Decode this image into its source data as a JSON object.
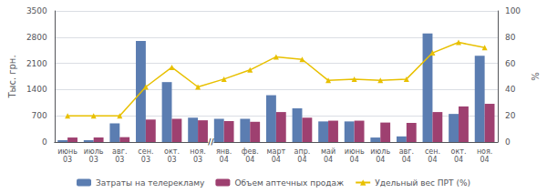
{
  "chart_data": {
    "type": "bar",
    "categories": [
      "июнь\n03",
      "июль\n03",
      "авг.\n03",
      "сен.\n03",
      "окт.\n03",
      "ноя.\n03",
      "янв.\n04",
      "фев.\n04",
      "март\n04",
      "апр.\n04",
      "май\n04",
      "июнь\n04",
      "июль\n04",
      "авг.\n04",
      "сен.\n04",
      "окт.\n04",
      "ноя.\n04"
    ],
    "series": [
      {
        "name": "Затраты на телерекламу",
        "type": "bar",
        "color": "#5b7db1",
        "values": [
          50,
          50,
          500,
          2700,
          1600,
          650,
          620,
          620,
          1250,
          900,
          550,
          550,
          120,
          150,
          2900,
          750,
          2300
        ]
      },
      {
        "name": "Объем аптечных продаж",
        "type": "bar",
        "color": "#9e4070",
        "values": [
          120,
          120,
          130,
          600,
          620,
          580,
          560,
          540,
          800,
          650,
          570,
          570,
          520,
          510,
          800,
          950,
          1020
        ]
      },
      {
        "name": "Удельный вес ПРТ (%)",
        "type": "line",
        "axis": "y2",
        "color": "#e8c000",
        "marker": "triangle",
        "values": [
          20,
          20,
          20,
          42,
          57,
          42,
          48,
          55,
          65,
          63,
          47,
          48,
          47,
          48,
          68,
          76,
          72
        ]
      }
    ],
    "ylabel": "Тыс. грн.",
    "ylim": [
      0,
      3500
    ],
    "yticks": [
      0,
      700,
      1400,
      2100,
      2800,
      3500
    ],
    "y2label": "%",
    "y2lim": [
      0,
      100
    ],
    "y2ticks": [
      0,
      20,
      40,
      60,
      80,
      100
    ],
    "grid": true,
    "legend": "bottom",
    "annotations": [
      {
        "text": "//",
        "between": [
          "ноя.\n03",
          "янв.\n04"
        ]
      }
    ]
  }
}
